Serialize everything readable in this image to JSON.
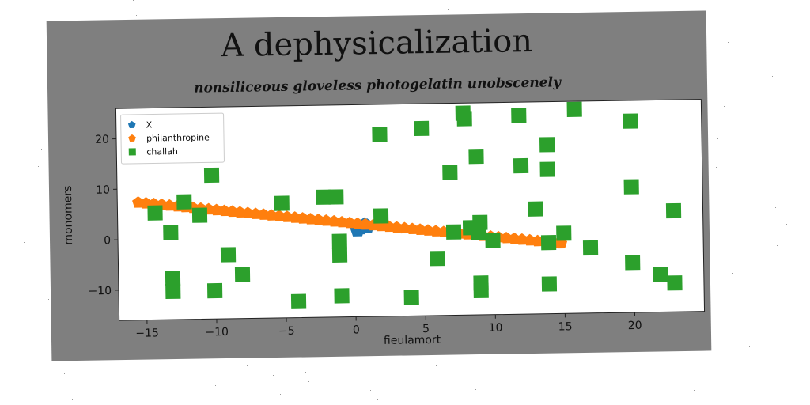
{
  "chart_data": {
    "type": "scatter",
    "title": "A dephysicalization",
    "subtitle": "nonsiliceous gloveless photogelatin unobscenely",
    "xlabel": "fieulamort",
    "ylabel": "monomers",
    "xlim": [
      -17,
      25
    ],
    "ylim": [
      -16,
      26
    ],
    "xticks": [
      -15,
      -10,
      -5,
      0,
      5,
      10,
      15,
      20
    ],
    "yticks": [
      -10,
      0,
      10,
      20
    ],
    "grid": false,
    "legend_position": "top-left",
    "series": [
      {
        "name": "X",
        "marker": "pentagon",
        "color": "#1f77b4",
        "points": [
          [
            0.4,
            1.6
          ],
          [
            0.7,
            2.1
          ],
          [
            0.2,
            1.2
          ],
          [
            0.9,
            1.9
          ]
        ]
      },
      {
        "name": "philanthropine",
        "marker": "pentagon",
        "color": "#ff7f0e",
        "line": {
          "x_start": -15.5,
          "x_end": 14.8,
          "slope": -0.31,
          "intercept": 2.5,
          "count": 55
        }
      },
      {
        "name": "challah",
        "marker": "square",
        "color": "#2ca02c",
        "points": [
          [
            -14.3,
            5.2
          ],
          [
            -13.2,
            1.3
          ],
          [
            -13.1,
            -7.8
          ],
          [
            -13.1,
            -10.4
          ],
          [
            -12.2,
            7.3
          ],
          [
            -11.1,
            4.6
          ],
          [
            -10.2,
            12.5
          ],
          [
            -10.1,
            -10.4
          ],
          [
            -9.1,
            -3.3
          ],
          [
            -8.1,
            -7.3
          ],
          [
            -5.2,
            6.7
          ],
          [
            -4.1,
            -12.8
          ],
          [
            -2.2,
            7.8
          ],
          [
            -1.3,
            7.8
          ],
          [
            -1.1,
            -1.0
          ],
          [
            -1.1,
            -3.7
          ],
          [
            -1.0,
            -11.8
          ],
          [
            1.9,
            20.1
          ],
          [
            1.9,
            3.9
          ],
          [
            4.0,
            -12.4
          ],
          [
            4.9,
            21.1
          ],
          [
            5.9,
            -4.7
          ],
          [
            6.9,
            12.3
          ],
          [
            7.1,
            0.5
          ],
          [
            7.9,
            24.0
          ],
          [
            8.0,
            22.9
          ],
          [
            8.3,
            1.3
          ],
          [
            8.8,
            15.4
          ],
          [
            9.0,
            -9.7
          ],
          [
            9.0,
            -11.2
          ],
          [
            8.9,
            0.3
          ],
          [
            9.0,
            2.3
          ],
          [
            9.9,
            -1.3
          ],
          [
            11.9,
            23.4
          ],
          [
            12.0,
            13.4
          ],
          [
            13.0,
            4.8
          ],
          [
            13.9,
            17.5
          ],
          [
            13.9,
            12.6
          ],
          [
            13.9,
            -1.9
          ],
          [
            13.9,
            -10.1
          ],
          [
            15.0,
            -0.1
          ],
          [
            15.9,
            24.4
          ],
          [
            16.9,
            -3.1
          ],
          [
            19.9,
            21.9
          ],
          [
            19.9,
            8.9
          ],
          [
            19.9,
            -6.1
          ],
          [
            21.9,
            -8.6
          ],
          [
            22.9,
            4.0
          ],
          [
            22.9,
            -10.3
          ]
        ]
      }
    ]
  }
}
